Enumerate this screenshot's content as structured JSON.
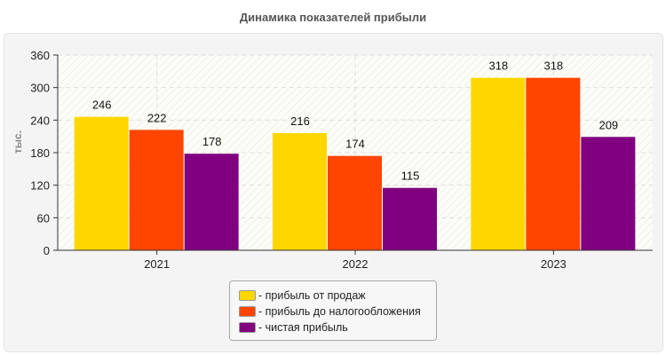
{
  "chart_data": {
    "type": "bar",
    "title": "Динамика показателей прибыли",
    "ylabel": "тыс.",
    "xlabel": "",
    "ylim": [
      0,
      360
    ],
    "yticks": [
      0,
      60,
      120,
      180,
      240,
      300,
      360
    ],
    "categories": [
      "2021",
      "2022",
      "2023"
    ],
    "grid": true,
    "legend_placement": "bottom",
    "series": [
      {
        "name": "прибыль от продаж",
        "values": [
          246,
          216,
          318
        ],
        "color": "#FFD700"
      },
      {
        "name": "прибыль до налогообложения",
        "values": [
          222,
          174,
          318
        ],
        "color": "#FF4500"
      },
      {
        "name": "чистая прибыль",
        "values": [
          178,
          115,
          209
        ],
        "color": "#800080"
      }
    ]
  }
}
